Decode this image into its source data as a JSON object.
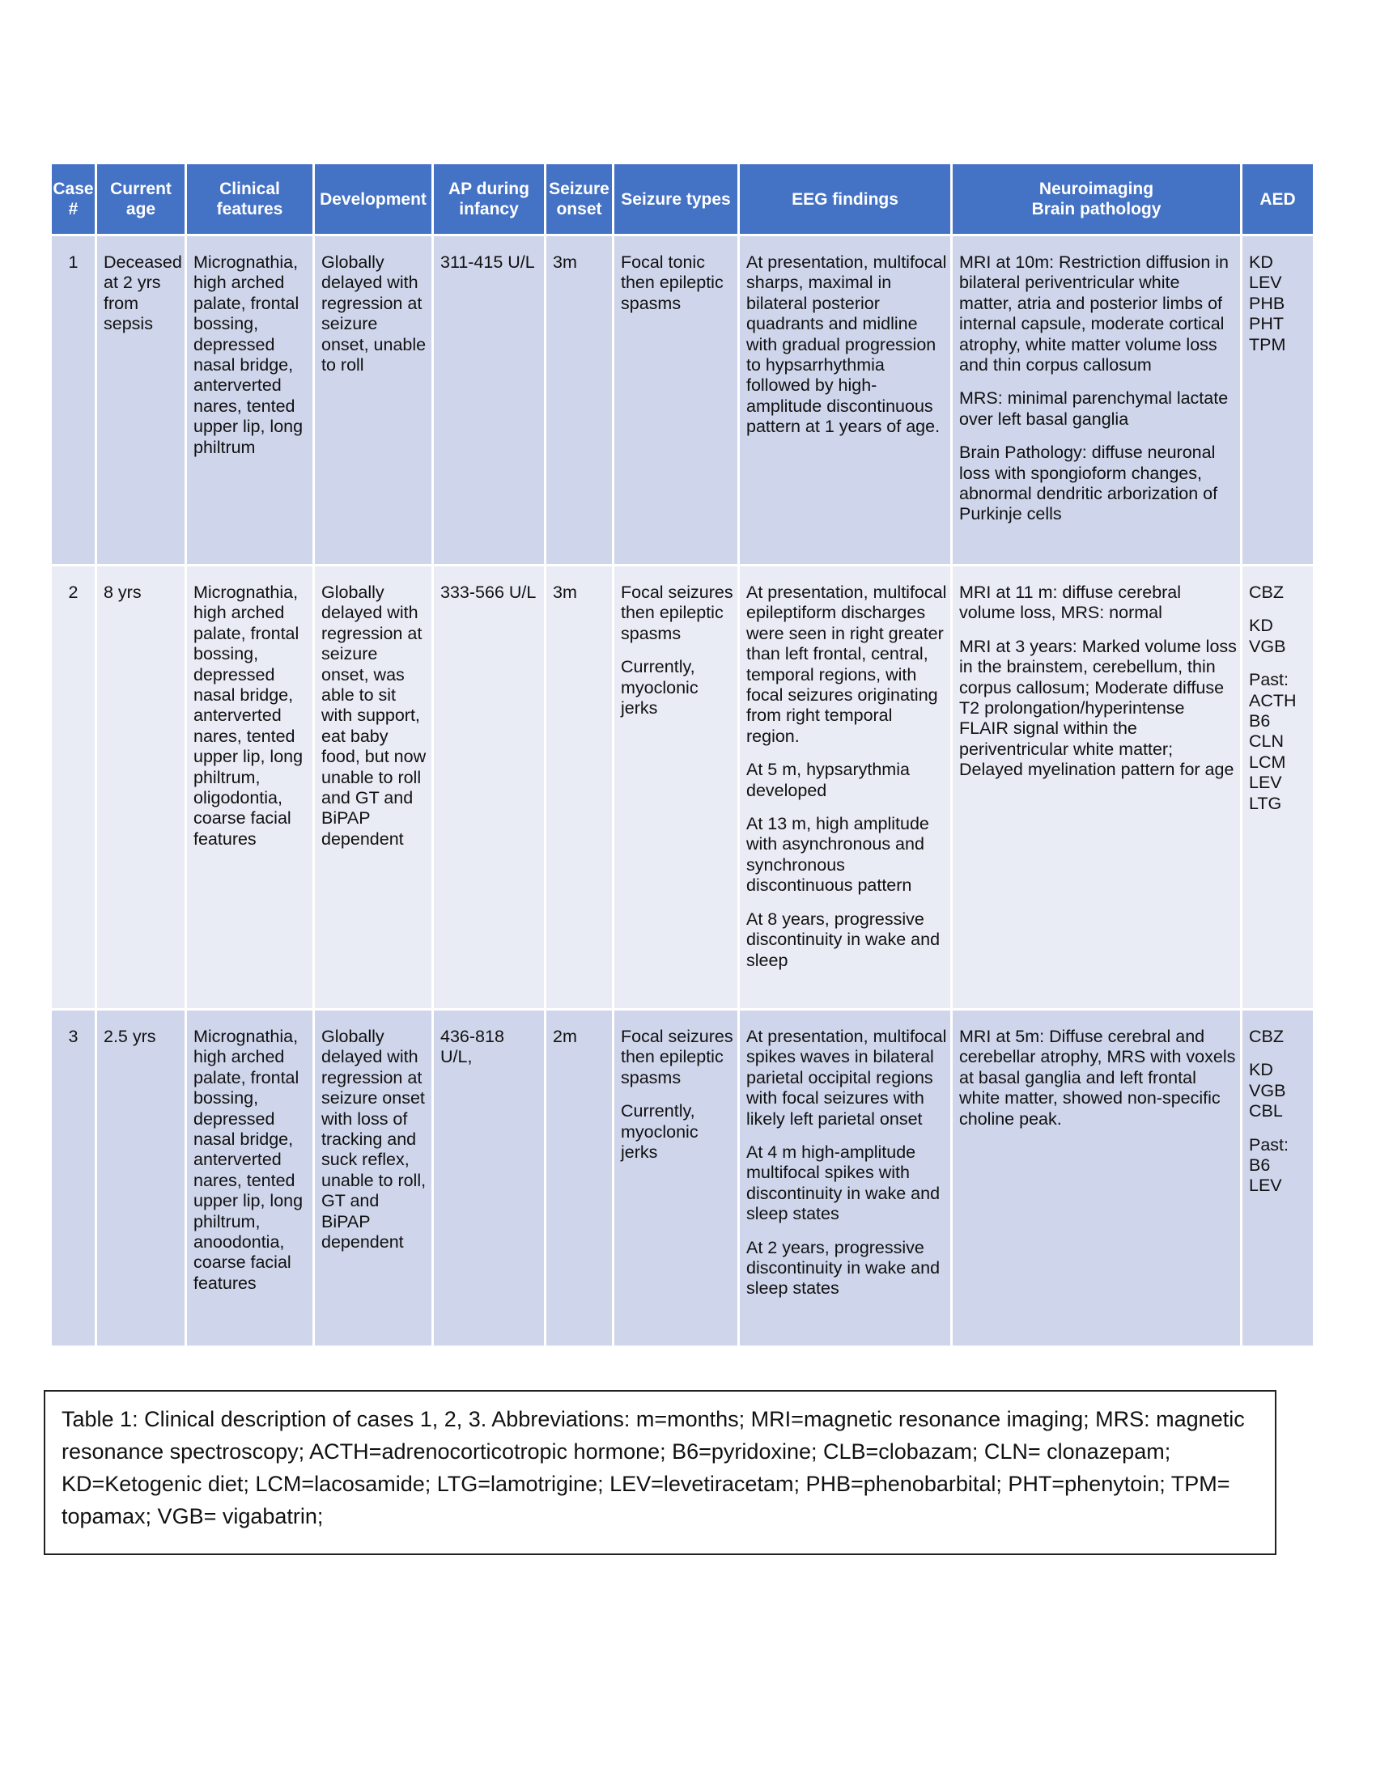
{
  "table": {
    "header": [
      "Case\n#",
      "Current\nage",
      "Clinical\nfeatures",
      "Development",
      "AP during\ninfancy",
      "Seizure\nonset",
      "Seizure types",
      "EEG findings",
      "Neuroimaging\nBrain pathology",
      "AED"
    ],
    "rows": [
      [
        [
          "1"
        ],
        [
          "Deceased at 2 yrs from sepsis"
        ],
        [
          "Micrognathia, high arched palate, frontal bossing, depressed nasal bridge, anterverted nares, tented upper lip, long philtrum"
        ],
        [
          "Globally delayed with regression at seizure onset, unable to roll"
        ],
        [
          "311-415 U/L"
        ],
        [
          "3m"
        ],
        [
          "Focal tonic then epileptic spasms"
        ],
        [
          "At presentation, multifocal sharps, maximal in bilateral posterior quadrants and midline with gradual progression to hypsarrhythmia followed by high-amplitude discontinuous pattern at 1 years of age."
        ],
        [
          "MRI at 10m: Restriction diffusion in bilateral periventricular white matter, atria and posterior limbs of internal capsule, moderate cortical atrophy, white matter volume loss and thin corpus callosum",
          "MRS: minimal parenchymal lactate over left basal ganglia",
          "Brain Pathology: diffuse neuronal loss with spongioform changes, abnormal dendritic arborization of Purkinje cells"
        ],
        [
          "KD\nLEV\nPHB\nPHT\nTPM"
        ]
      ],
      [
        [
          "2"
        ],
        [
          "8 yrs"
        ],
        [
          "Micrognathia, high arched palate, frontal bossing, depressed nasal bridge, anterverted nares, tented upper lip, long philtrum, oligodontia, coarse facial features"
        ],
        [
          "Globally delayed with regression at seizure onset, was able to sit with support, eat baby food, but now unable to roll and GT and BiPAP dependent"
        ],
        [
          "333-566 U/L"
        ],
        [
          "3m"
        ],
        [
          "Focal seizures then epileptic spasms",
          "Currently, myoclonic jerks"
        ],
        [
          "At presentation, multifocal epileptiform discharges were seen in right greater than left frontal, central, temporal regions, with focal seizures originating from right temporal region.",
          "At 5 m, hypsarythmia developed",
          "At 13 m, high amplitude with asynchronous and synchronous discontinuous pattern",
          "At 8 years, progressive discontinuity in wake and sleep"
        ],
        [
          "MRI at 11 m: diffuse cerebral volume loss, MRS: normal",
          "MRI at 3 years: Marked volume loss in the brainstem, cerebellum, thin corpus callosum; Moderate diffuse T2 prolongation/hyperintense FLAIR signal within the periventricular white matter; Delayed myelination pattern for age"
        ],
        [
          "CBZ",
          "KD\nVGB",
          "Past:\nACTH\nB6\nCLN\nLCM\nLEV\nLTG"
        ]
      ],
      [
        [
          "3"
        ],
        [
          "2.5 yrs"
        ],
        [
          "Micrognathia, high arched palate, frontal bossing, depressed nasal bridge, anterverted nares, tented upper lip, long philtrum, anoodontia, coarse facial features"
        ],
        [
          "Globally delayed with regression at seizure onset with loss of tracking and suck reflex, unable to roll, GT and BiPAP dependent"
        ],
        [
          "436-818 U/L,"
        ],
        [
          "2m"
        ],
        [
          "Focal seizures then epileptic spasms",
          "Currently, myoclonic jerks"
        ],
        [
          "At presentation, multifocal spikes waves in bilateral parietal occipital regions with focal seizures with likely left parietal onset",
          "At 4 m high-amplitude multifocal spikes with discontinuity in wake and sleep states",
          "At 2 years, progressive discontinuity in wake and sleep states"
        ],
        [
          "MRI at 5m: Diffuse cerebral and cerebellar atrophy, MRS with voxels at basal ganglia and left frontal white matter, showed non-specific choline peak."
        ],
        [
          "CBZ",
          "KD\nVGB\nCBL",
          "Past:\nB6\nLEV"
        ]
      ]
    ]
  },
  "caption": "Table 1: Clinical description of cases 1, 2, 3. Abbreviations: m=months; MRI=magnetic resonance imaging; MRS: magnetic resonance spectroscopy; ACTH=adrenocorticotropic hormone; B6=pyridoxine; CLB=clobazam; CLN= clonazepam;  KD=Ketogenic diet; LCM=lacosamide; LTG=lamotrigine; LEV=levetiracetam; PHB=phenobarbital; PHT=phenytoin;  TPM= topamax; VGB= vigabatrin;"
}
